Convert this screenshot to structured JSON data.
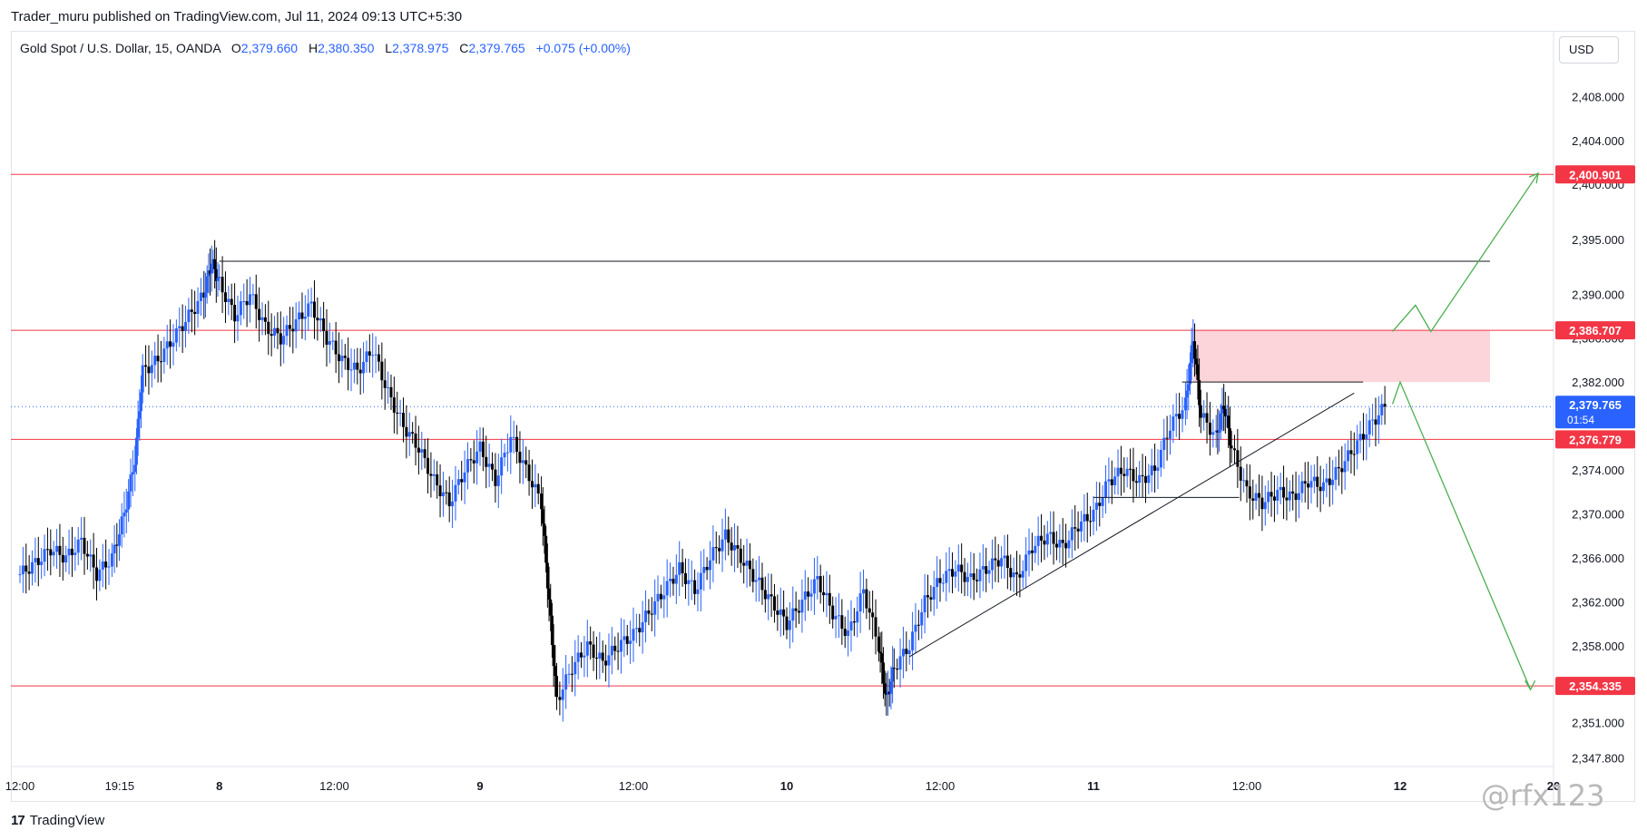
{
  "publisher_line": "Trader_muru published on TradingView.com, Jul 11, 2024 09:13 UTC+5:30",
  "legend": {
    "symbol": "Gold Spot / U.S. Dollar, 15, OANDA",
    "open_label": "O",
    "open": "2,379.660",
    "high_label": "H",
    "high": "2,380.350",
    "low_label": "L",
    "low": "2,378.975",
    "close_label": "C",
    "close": "2,379.765",
    "change": "+0.075 (+0.00%)"
  },
  "currency_button": "USD",
  "brand": {
    "logo": "17",
    "name": "TradingView"
  },
  "watermark": "@rfx123",
  "colors": {
    "up": "#2962ff",
    "down": "#000000",
    "level_line": "#f23645",
    "zone_fill": "#fcd5da",
    "projection": "#4caf50",
    "current_price": "#2962ff"
  },
  "chart_data": {
    "type": "candlestick",
    "symbol": "XAUUSD",
    "interval": "15",
    "ylim": [
      2347.0,
      2411.0
    ],
    "y_ticks": [
      "2,408.000",
      "2,404.000",
      "2,400.000",
      "2,395.000",
      "2,390.000",
      "2,386.000",
      "2,382.000",
      "2,374.000",
      "2,370.000",
      "2,366.000",
      "2,362.000",
      "2,358.000",
      "2,351.000",
      "2,347.800"
    ],
    "y_tick_values": [
      2408,
      2404,
      2400,
      2395,
      2390,
      2386,
      2382,
      2374,
      2370,
      2366,
      2362,
      2358,
      2351,
      2347.8
    ],
    "x_ticks": [
      {
        "label": "12:00",
        "t": 0
      },
      {
        "label": "19:15",
        "t": 0.065
      },
      {
        "label": "8",
        "t": 0.13
      },
      {
        "label": "12:00",
        "t": 0.205
      },
      {
        "label": "9",
        "t": 0.3
      },
      {
        "label": "12:00",
        "t": 0.4
      },
      {
        "label": "10",
        "t": 0.5
      },
      {
        "label": "12:00",
        "t": 0.6
      },
      {
        "label": "11",
        "t": 0.7
      },
      {
        "label": "12:00",
        "t": 0.8
      },
      {
        "label": "12",
        "t": 0.9
      },
      {
        "label": "20",
        "t": 1.0
      }
    ],
    "price_levels": [
      {
        "value": 2400.901,
        "label": "2,400.901"
      },
      {
        "value": 2386.707,
        "label": "2,386.707"
      },
      {
        "value": 2376.779,
        "label": "2,376.779"
      },
      {
        "value": 2354.335,
        "label": "2,354.335"
      }
    ],
    "current_price": {
      "value": 2379.765,
      "label": "2,379.765",
      "countdown": "01:54"
    },
    "candles_close_path": [
      [
        0,
        2364.5
      ],
      [
        0.01,
        2365.5
      ],
      [
        0.02,
        2366.8
      ],
      [
        0.03,
        2366.0
      ],
      [
        0.04,
        2367.5
      ],
      [
        0.05,
        2364.5
      ],
      [
        0.06,
        2366.0
      ],
      [
        0.068,
        2370.0
      ],
      [
        0.075,
        2375.0
      ],
      [
        0.08,
        2383.0
      ],
      [
        0.09,
        2384.0
      ],
      [
        0.1,
        2386.0
      ],
      [
        0.11,
        2388.0
      ],
      [
        0.12,
        2390.0
      ],
      [
        0.125,
        2393.0
      ],
      [
        0.13,
        2391.0
      ],
      [
        0.14,
        2388.0
      ],
      [
        0.15,
        2390.0
      ],
      [
        0.16,
        2387.0
      ],
      [
        0.17,
        2386.0
      ],
      [
        0.18,
        2387.5
      ],
      [
        0.19,
        2389.0
      ],
      [
        0.2,
        2386.0
      ],
      [
        0.21,
        2384.0
      ],
      [
        0.22,
        2383.0
      ],
      [
        0.23,
        2385.0
      ],
      [
        0.24,
        2381.0
      ],
      [
        0.25,
        2378.0
      ],
      [
        0.26,
        2376.0
      ],
      [
        0.27,
        2373.0
      ],
      [
        0.28,
        2371.0
      ],
      [
        0.29,
        2374.0
      ],
      [
        0.3,
        2376.0
      ],
      [
        0.31,
        2373.0
      ],
      [
        0.32,
        2377.0
      ],
      [
        0.33,
        2374.0
      ],
      [
        0.34,
        2371.0
      ],
      [
        0.345,
        2362.0
      ],
      [
        0.35,
        2353.0
      ],
      [
        0.36,
        2356.0
      ],
      [
        0.37,
        2358.0
      ],
      [
        0.38,
        2356.5
      ],
      [
        0.39,
        2358.0
      ],
      [
        0.4,
        2359.0
      ],
      [
        0.41,
        2361.0
      ],
      [
        0.42,
        2363.0
      ],
      [
        0.43,
        2365.0
      ],
      [
        0.44,
        2363.0
      ],
      [
        0.45,
        2366.0
      ],
      [
        0.46,
        2368.0
      ],
      [
        0.47,
        2366.0
      ],
      [
        0.48,
        2364.0
      ],
      [
        0.49,
        2362.0
      ],
      [
        0.5,
        2360.0
      ],
      [
        0.51,
        2362.0
      ],
      [
        0.52,
        2364.0
      ],
      [
        0.53,
        2361.0
      ],
      [
        0.54,
        2359.0
      ],
      [
        0.55,
        2363.0
      ],
      [
        0.56,
        2358.0
      ],
      [
        0.565,
        2353.0
      ],
      [
        0.57,
        2356.0
      ],
      [
        0.58,
        2358.0
      ],
      [
        0.59,
        2362.0
      ],
      [
        0.6,
        2364.0
      ],
      [
        0.61,
        2365.0
      ],
      [
        0.62,
        2364.0
      ],
      [
        0.63,
        2365.0
      ],
      [
        0.64,
        2366.0
      ],
      [
        0.65,
        2364.0
      ],
      [
        0.66,
        2367.0
      ],
      [
        0.67,
        2368.0
      ],
      [
        0.68,
        2367.0
      ],
      [
        0.69,
        2369.0
      ],
      [
        0.7,
        2370.0
      ],
      [
        0.71,
        2373.0
      ],
      [
        0.72,
        2374.0
      ],
      [
        0.73,
        2373.0
      ],
      [
        0.74,
        2374.0
      ],
      [
        0.75,
        2378.0
      ],
      [
        0.76,
        2380.0
      ],
      [
        0.765,
        2386.0
      ],
      [
        0.77,
        2379.0
      ],
      [
        0.78,
        2377.0
      ],
      [
        0.785,
        2380.0
      ],
      [
        0.79,
        2376.0
      ],
      [
        0.8,
        2372.0
      ],
      [
        0.81,
        2371.0
      ],
      [
        0.82,
        2372.0
      ],
      [
        0.83,
        2371.5
      ],
      [
        0.84,
        2373.0
      ],
      [
        0.85,
        2372.5
      ],
      [
        0.86,
        2374.0
      ],
      [
        0.87,
        2376.0
      ],
      [
        0.88,
        2378.0
      ],
      [
        0.89,
        2379.765
      ]
    ],
    "drawings": {
      "top_horizontal": {
        "x0": 0.13,
        "x1": 1.0,
        "y": 2393.0
      },
      "demand_zone": {
        "x0": 0.765,
        "x1": 1.0,
        "y_top": 2386.707,
        "y_bottom": 2382.0
      },
      "zone_bottom_line": {
        "x0": 0.74,
        "x1": 0.935,
        "y": 2382.0
      },
      "consolidation_line": {
        "x0": 0.7,
        "x1": 0.795,
        "y": 2371.5
      },
      "trendline": {
        "x0": 0.58,
        "y0": 2357.0,
        "x1": 0.87,
        "y1": 2381.0
      },
      "bull_projection": [
        [
          0.895,
          2386.6
        ],
        [
          0.91,
          2389.0
        ],
        [
          0.92,
          2386.6
        ],
        [
          0.99,
          2401.0
        ]
      ],
      "bear_projection": [
        [
          0.895,
          2380.0
        ],
        [
          0.9,
          2382.0
        ],
        [
          0.985,
          2354.0
        ]
      ]
    }
  }
}
